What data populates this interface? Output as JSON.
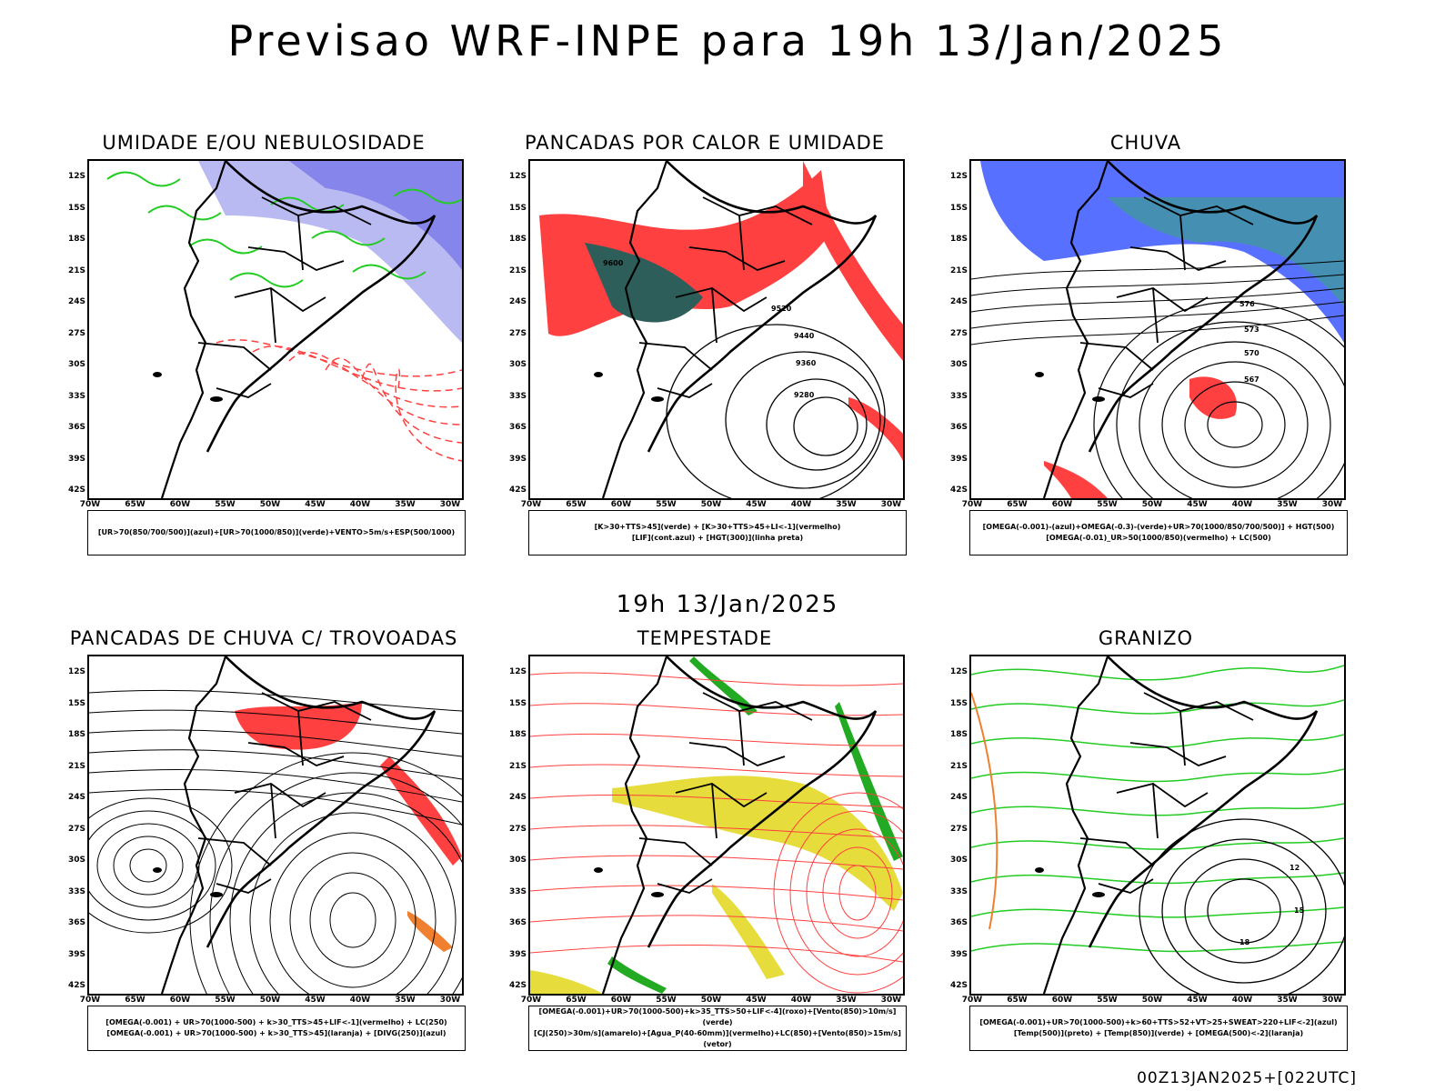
{
  "header": {
    "title": "Previsao WRF-INPE  para 19h 13/Jan/2025",
    "subtitle": "19h 13/Jan/2025",
    "footer": "00Z13JAN2025+[022UTC]"
  },
  "axes": {
    "lat": [
      "12S",
      "15S",
      "18S",
      "21S",
      "24S",
      "27S",
      "30S",
      "33S",
      "36S",
      "39S",
      "42S"
    ],
    "lon": [
      "70W",
      "65W",
      "60W",
      "55W",
      "50W",
      "45W",
      "40W",
      "35W",
      "30W"
    ]
  },
  "panels": [
    {
      "title": "UMIDADE E/OU NEBULOSIDADE",
      "legend": [
        "[UR>70(850/700/500)](azul)+[UR>70(1000/850)](verde)+VENTO>5m/s+ESP(500/1000)"
      ],
      "colors": {
        "fill": "#a9a9f0",
        "fill2": "#5a5ae6",
        "line": "#22cc22",
        "line2": "#ff4040"
      }
    },
    {
      "title": "PANCADAS POR CALOR E UMIDADE",
      "legend": [
        "[K>30+TTS>45](verde) + [K>30+TTS>45+LI<-1](vermelho)",
        "[LIF](cont.azul) + [HGT(300)](linha preta)"
      ],
      "contours": [
        "9600",
        "9520",
        "9440",
        "9360",
        "9280"
      ],
      "colors": {
        "fill": "#ff4040",
        "fill2": "#2e5e5a",
        "line": "#2020ff"
      }
    },
    {
      "title": "CHUVA",
      "legend": [
        "[OMEGA(-0.001)-(azul)+OMEGA(-0.3)-(verde)+UR>70(1000/850/700/500)] + HGT(500)",
        "[OMEGA(-0.01)_UR>50(1000/850)(vermelho) + LC(500)"
      ],
      "contours": [
        "576",
        "573",
        "570",
        "567"
      ],
      "colors": {
        "fill": "#2040ff",
        "fill2": "#ff4040",
        "line": "#22cc22"
      }
    },
    {
      "title": "PANCADAS DE CHUVA C/ TROVOADAS",
      "legend": [
        "[OMEGA(-0.001) + UR>70(1000-500) + k>30_TTS>45+LIF<-1](vermelho) + LC(250)",
        "[OMEGA(-0.001) + UR>70(1000-500) + k>30_TTS>45](laranja) + [DIVG(250)](azul)"
      ],
      "colors": {
        "fill": "#ff4040",
        "fill2": "#f08030",
        "line": "#2040ff"
      }
    },
    {
      "title": "TEMPESTADE",
      "legend": [
        "[OMEGA(-0.001)+UR>70(1000-500)+k>35_TTS>50+LIF<-4](roxo)+[Vento(850)>10m/s](verde)",
        "[CJ(250)>30m/s](amarelo)+[Agua_P(40-60mm)](vermelho)+LC(850)+[Vento(850)>15m/s](vetor)"
      ],
      "colors": {
        "fill": "#e6dc3c",
        "fill2": "#22aa22",
        "line": "#ff4040"
      }
    },
    {
      "title": "GRANIZO",
      "legend": [
        "[OMEGA(-0.001)+UR>70(1000-500)+k>60+TTS>52+VT>25+SWEAT>220+LIF<-2](azul)",
        "[Temp(500)](preto) + [Temp(850)](verde) + [OMEGA(500)<-2](laranja)"
      ],
      "contours": [
        "12",
        "15",
        "18"
      ],
      "colors": {
        "fill": "#f08030",
        "fill2": "#ff4040",
        "line": "#22cc22"
      }
    }
  ]
}
